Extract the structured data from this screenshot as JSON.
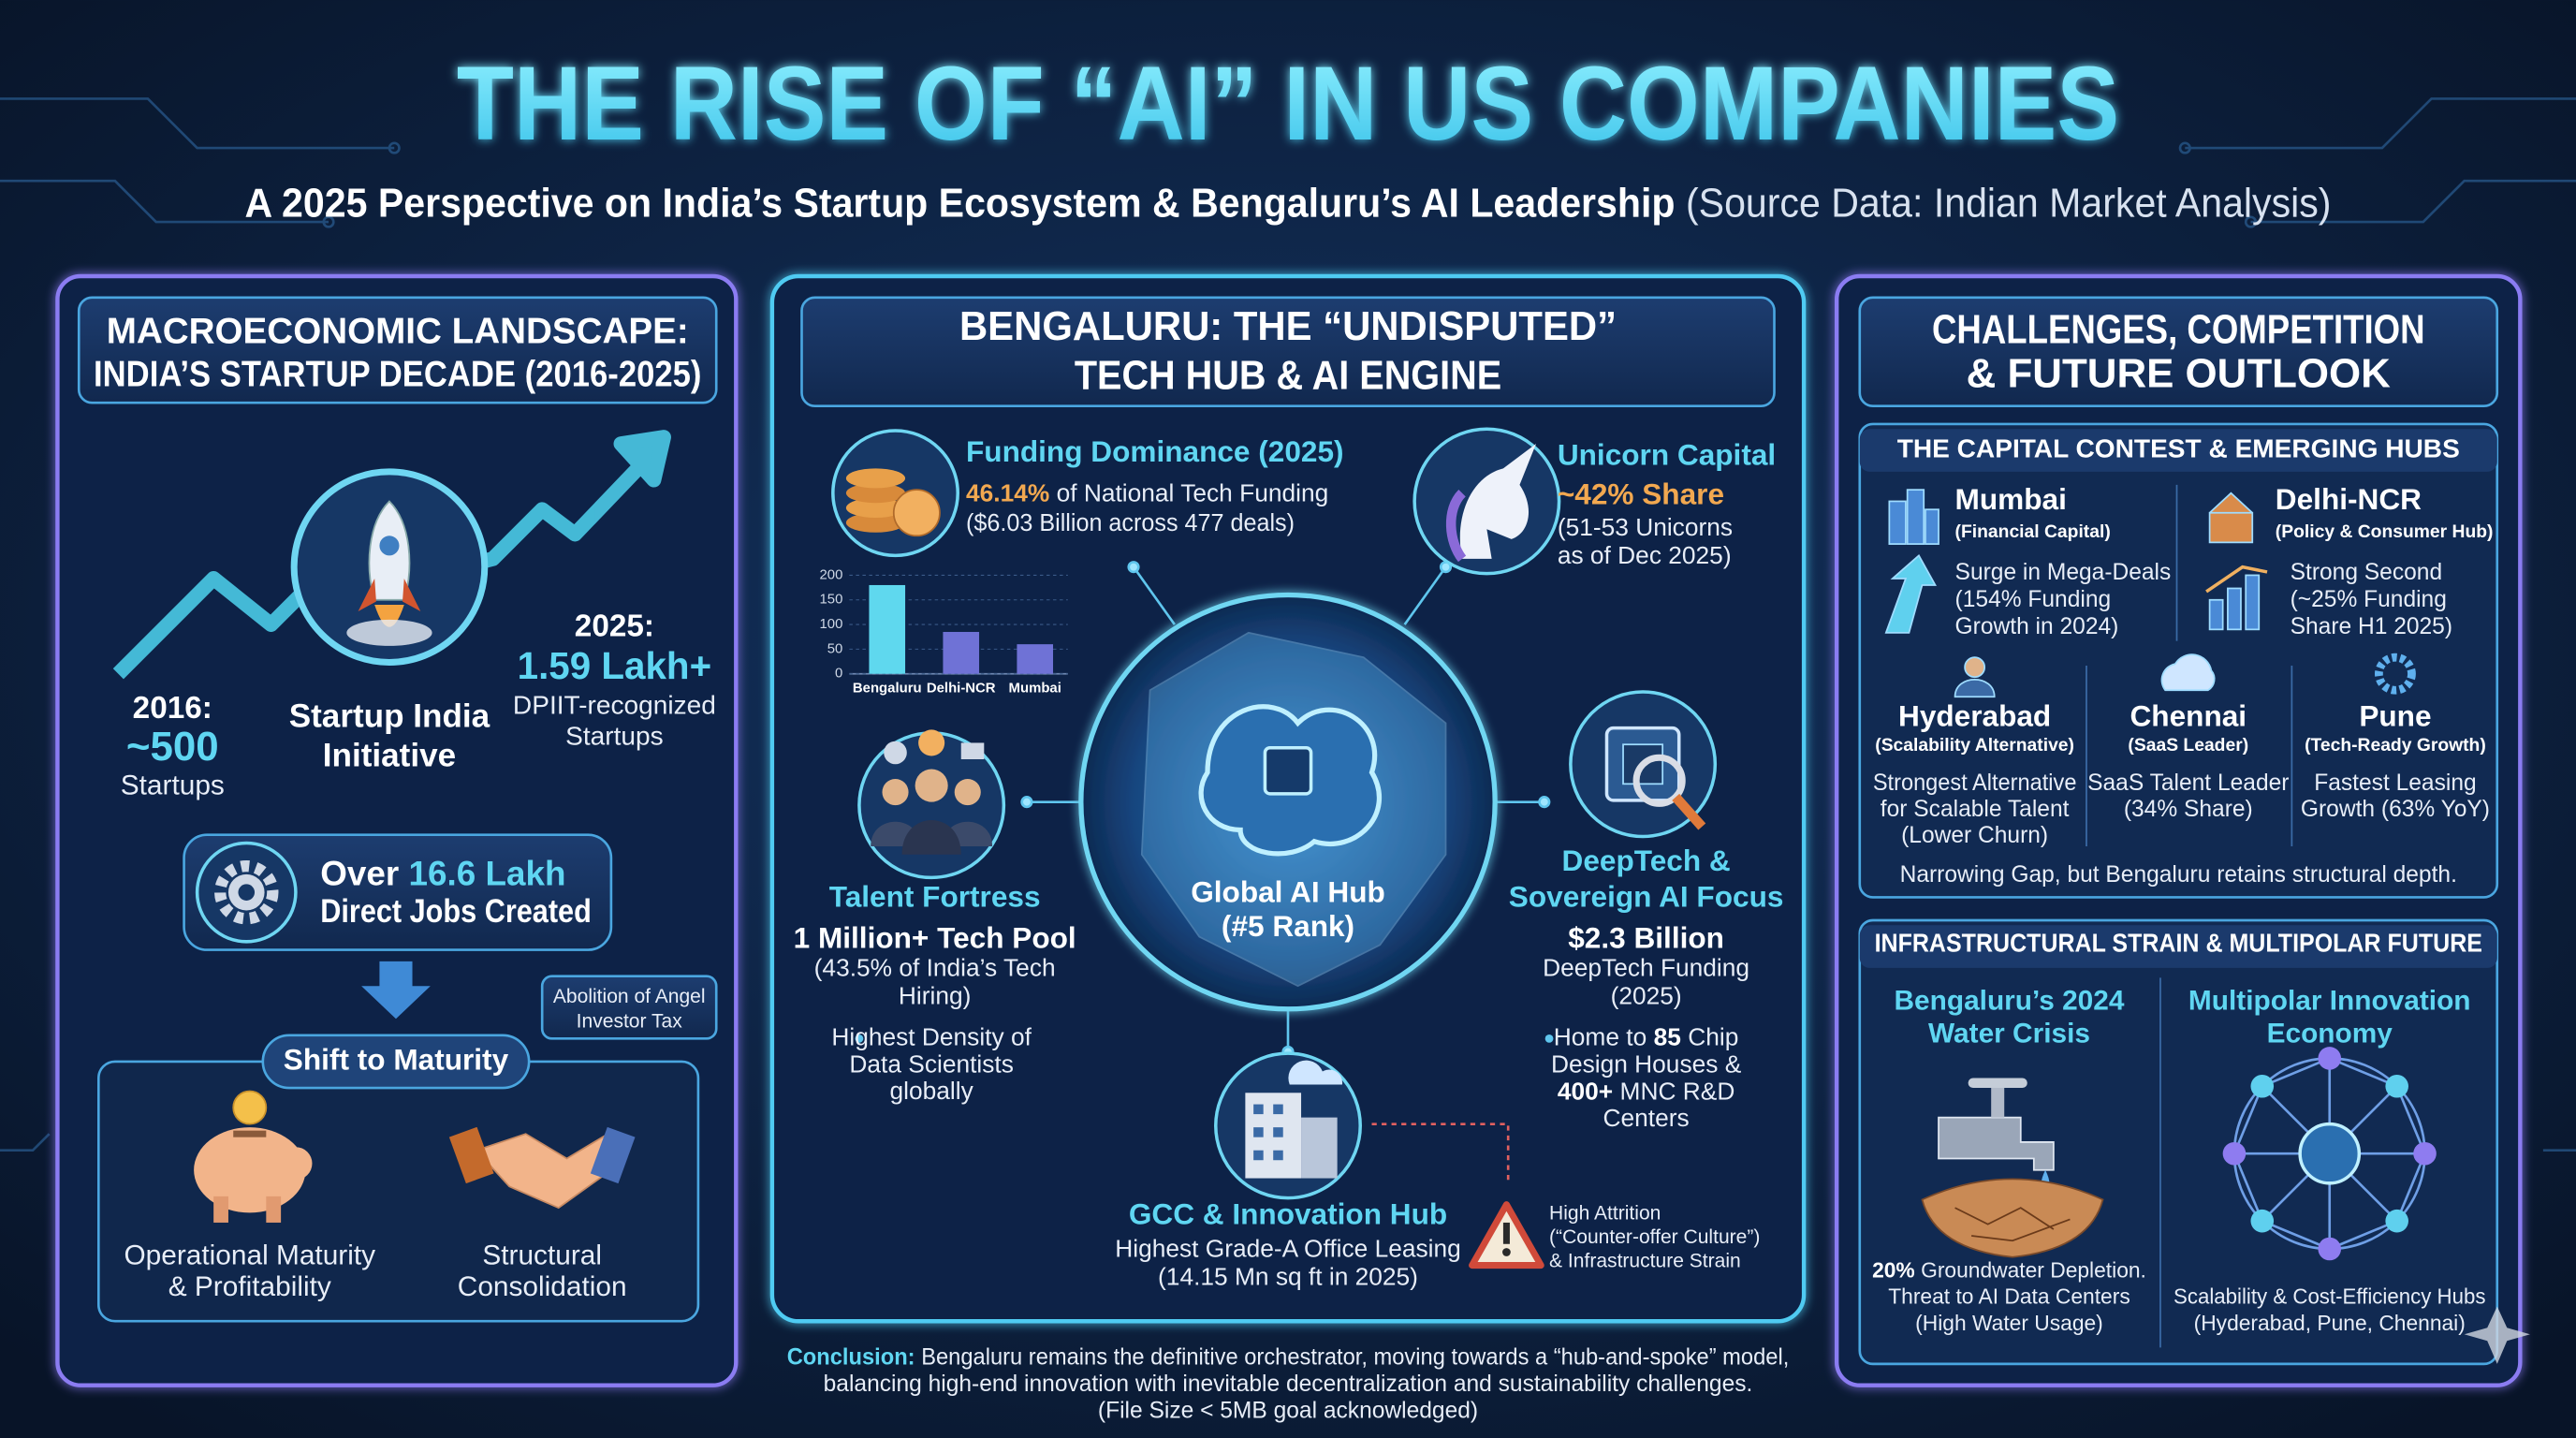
{
  "header": {
    "title": "THE RISE OF “AI” IN US COMPANIES",
    "subtitle": "A 2025 Perspective on India’s Startup Ecosystem & Bengaluru’s AI Leadership",
    "source": "(Source Data: Indian Market Analysis)"
  },
  "macro": {
    "title": [
      "MACROECONOMIC LANDSCAPE:",
      "INDIA’S STARTUP DECADE (2016-2025)"
    ],
    "start": {
      "year": "2016:",
      "value": "~500",
      "unit": "Startups"
    },
    "initiative": [
      "Startup India",
      "Initiative"
    ],
    "end": {
      "year": "2025:",
      "value": "1.59 Lakh+",
      "unit": [
        "DPIIT-recognized",
        "Startups"
      ]
    },
    "jobs": {
      "prefix": "Over",
      "value": "16.6 Lakh",
      "text": "Direct Jobs Created"
    },
    "callout": [
      "Abolition of Angel",
      "Investor Tax"
    ],
    "shift": "Shift to Maturity",
    "outcomes": [
      [
        "Operational Maturity",
        "& Profitability"
      ],
      [
        "Structural",
        "Consolidation"
      ]
    ]
  },
  "bengaluru": {
    "title": [
      "BENGALURU: THE “UNDISPUTED”",
      "TECH HUB & AI ENGINE"
    ],
    "funding": {
      "title": "Funding Dominance (2025)",
      "share": "46.14%",
      "share_text": "of National Tech Funding",
      "detail": "($6.03 Billion across 477 deals)",
      "chart": {
        "categories": [
          "Bengaluru",
          "Delhi-NCR",
          "Mumbai"
        ],
        "values": [
          180,
          85,
          60
        ],
        "colors": [
          "#5fd8ee",
          "#6f72d6",
          "#6f72d6"
        ],
        "ylim": [
          0,
          200
        ],
        "yticks": [
          0,
          50,
          100,
          150,
          200
        ]
      }
    },
    "unicorn": {
      "title": "Unicorn Capital",
      "share": "~42% Share",
      "detail": [
        "(51-53 Unicorns",
        "as of Dec 2025)"
      ]
    },
    "hub": [
      "Global AI Hub",
      "(#5 Rank)"
    ],
    "talent": {
      "title": "Talent Fortress",
      "value": "1 Million+ Tech Pool",
      "detail": [
        "(43.5% of India’s Tech",
        "Hiring)"
      ],
      "bullet": [
        "Highest Density of",
        "Data Scientists",
        "globally"
      ]
    },
    "deeptech": {
      "title": [
        "DeepTech &",
        "Sovereign AI Focus"
      ],
      "value": "$2.3 Billion",
      "detail": [
        "DeepTech Funding",
        "(2025)"
      ],
      "bullet": [
        [
          "Home to",
          "85",
          "Chip"
        ],
        [
          "Design Houses &"
        ],
        [
          "400+",
          "MNC R&D"
        ],
        [
          "Centers"
        ]
      ]
    },
    "gcc": {
      "title": "GCC & Innovation Hub",
      "detail": [
        "Highest Grade-A Office Leasing",
        "(14.15 Mn sq ft in 2025)"
      ]
    },
    "risk": [
      "High Attrition",
      "(“Counter-offer Culture”)",
      "& Infrastructure Strain"
    ]
  },
  "outlook": {
    "title": [
      "CHALLENGES, COMPETITION",
      "& FUTURE OUTLOOK"
    ],
    "contest": {
      "title": "THE CAPITAL CONTEST & EMERGING HUBS",
      "major": [
        {
          "name": "Mumbai",
          "role": "(Financial Capital)",
          "detail": [
            "Surge in Mega-Deals",
            "(154% Funding",
            "Growth in 2024)"
          ]
        },
        {
          "name": "Delhi-NCR",
          "role": "(Policy & Consumer Hub)",
          "detail": [
            "Strong Second",
            "(~25% Funding",
            "Share H1 2025)"
          ]
        }
      ],
      "emerging": [
        {
          "name": "Hyderabad",
          "role": "(Scalability Alternative)",
          "detail": [
            "Strongest Alternative",
            "for Scalable Talent",
            "(Lower Churn)"
          ]
        },
        {
          "name": "Chennai",
          "role": "(SaaS Leader)",
          "detail": [
            "SaaS Talent Leader",
            "(34% Share)"
          ]
        },
        {
          "name": "Pune",
          "role": "(Tech-Ready Growth)",
          "detail": [
            "Fastest Leasing",
            "Growth (63% YoY)"
          ]
        }
      ],
      "note": "Narrowing Gap, but Bengaluru retains structural depth."
    },
    "strain": {
      "title": "INFRASTRUCTURAL STRAIN & MULTIPOLAR FUTURE",
      "water": {
        "title": [
          "Bengaluru’s 2024",
          "Water Crisis"
        ],
        "stat": "20%",
        "detail": [
          "Groundwater Depletion.",
          "Threat to AI Data Centers",
          "(High Water Usage)"
        ]
      },
      "multipolar": {
        "title": [
          "Multipolar Innovation",
          "Economy"
        ],
        "detail": [
          "Scalability & Cost-Efficiency Hubs",
          "(Hyderabad, Pune, Chennai)"
        ]
      }
    }
  },
  "conclusion": {
    "label": "Conclusion:",
    "text": [
      "Bengaluru remains the definitive orchestrator, moving towards a “hub-and-spoke” model,",
      "balancing high-end innovation with inevitable decentralization and sustainability challenges.",
      "(File Size < 5MB goal acknowledged)"
    ]
  }
}
